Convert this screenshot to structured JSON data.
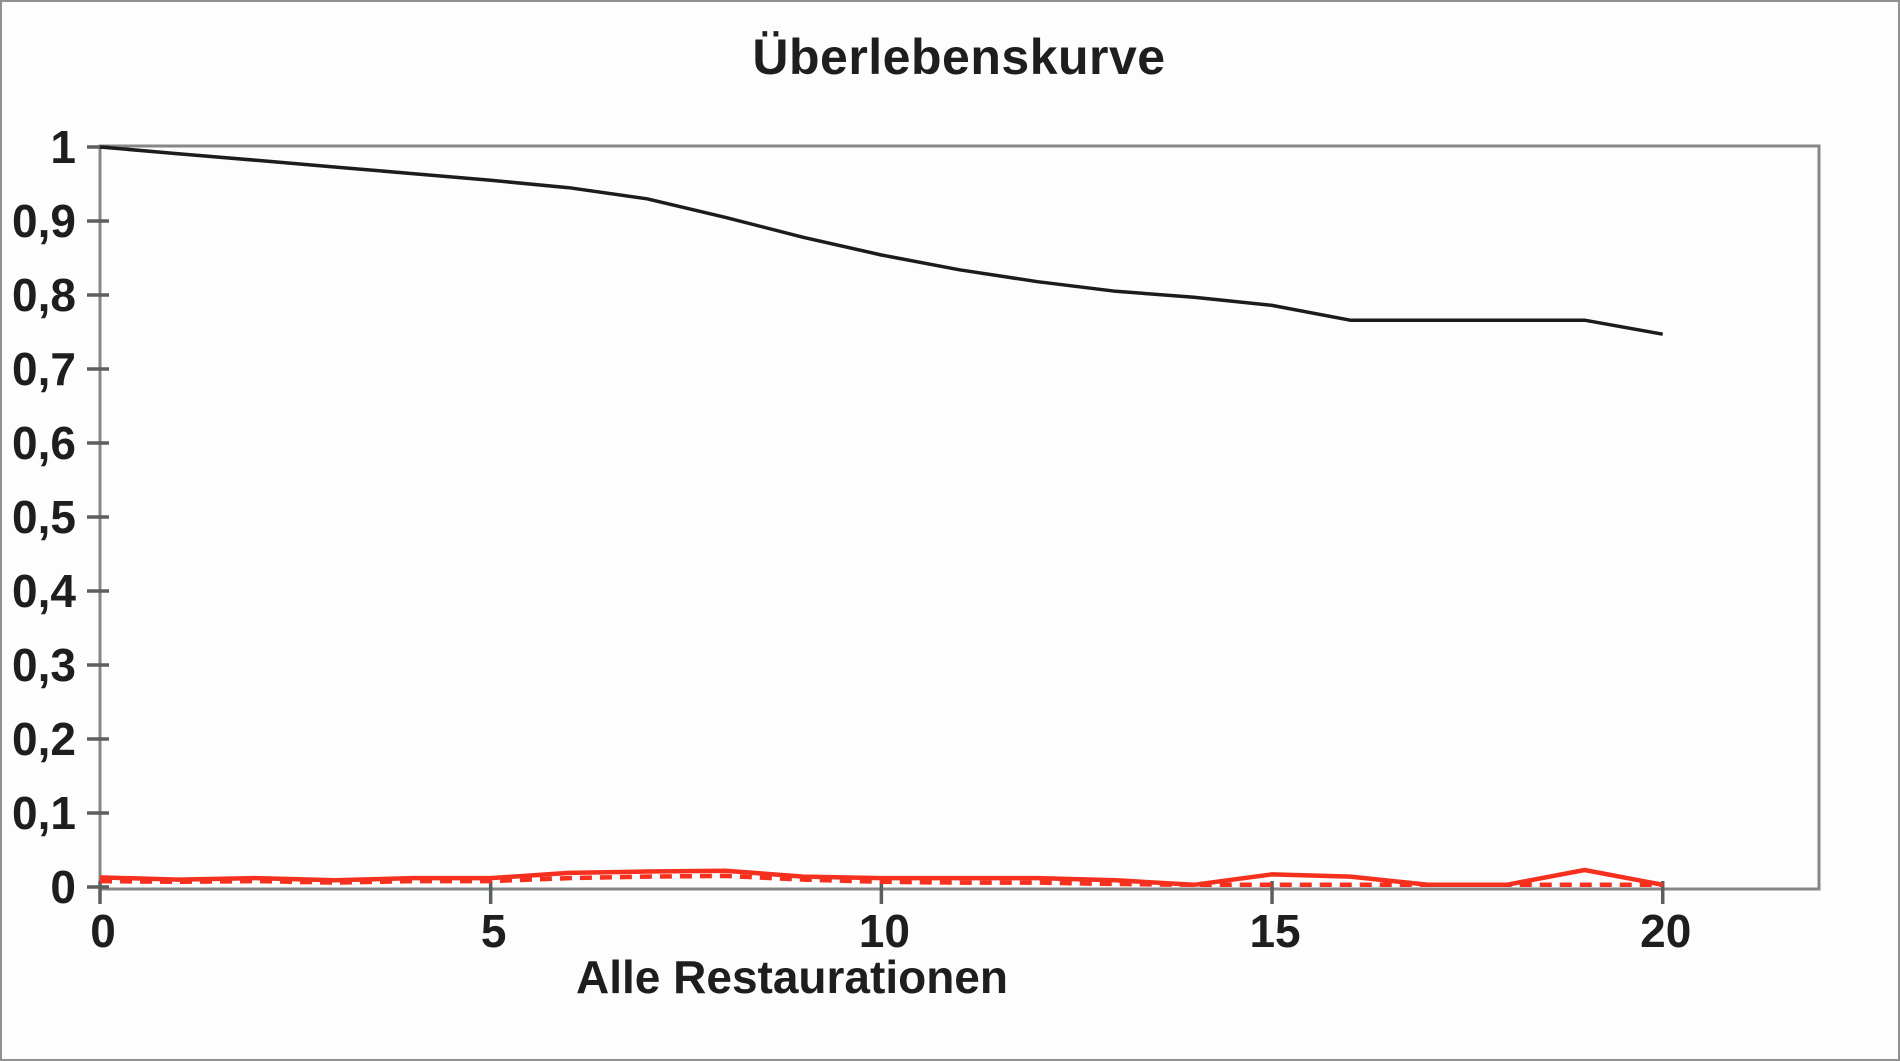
{
  "chart_data": {
    "type": "line",
    "title": "Überlebenskurve",
    "xlabel": "Alle Restaurationen",
    "ylabel": "",
    "x": [
      0,
      1,
      2,
      3,
      4,
      5,
      6,
      7,
      8,
      9,
      10,
      11,
      12,
      13,
      14,
      15,
      16,
      17,
      18,
      19,
      20
    ],
    "series": [
      {
        "name": "black_solid",
        "color": "#1c1c1c",
        "style": "solid",
        "width": 3.5,
        "values": [
          1.0,
          0.991,
          0.982,
          0.973,
          0.964,
          0.955,
          0.945,
          0.93,
          0.905,
          0.878,
          0.854,
          0.834,
          0.818,
          0.805,
          0.797,
          0.786,
          0.766,
          0.766,
          0.766,
          0.766,
          0.747
        ]
      },
      {
        "name": "red_solid",
        "color": "#f5301f",
        "style": "solid",
        "width": 4.5,
        "values": [
          0.013,
          0.01,
          0.012,
          0.009,
          0.012,
          0.012,
          0.019,
          0.021,
          0.022,
          0.014,
          0.012,
          0.012,
          0.012,
          0.009,
          0.003,
          0.017,
          0.014,
          0.003,
          0.003,
          0.023,
          0.003
        ]
      },
      {
        "name": "red_dashed",
        "color": "#f5301f",
        "style": "dashed",
        "width": 4.5,
        "values": [
          0.008,
          0.007,
          0.008,
          0.006,
          0.008,
          0.008,
          0.012,
          0.014,
          0.015,
          0.01,
          0.007,
          0.006,
          0.006,
          0.004,
          0.003,
          0.003,
          0.003,
          0.003,
          0.003,
          0.003,
          0.003
        ]
      }
    ],
    "x_ticks": [
      {
        "value": 0,
        "label": "0"
      },
      {
        "value": 5,
        "label": "5"
      },
      {
        "value": 10,
        "label": "10"
      },
      {
        "value": 15,
        "label": "15"
      },
      {
        "value": 20,
        "label": "20"
      }
    ],
    "y_ticks": [
      {
        "value": 1.0,
        "label": "1"
      },
      {
        "value": 0.9,
        "label": "0,9"
      },
      {
        "value": 0.8,
        "label": "0,8"
      },
      {
        "value": 0.7,
        "label": "0,7"
      },
      {
        "value": 0.6,
        "label": "0,6"
      },
      {
        "value": 0.5,
        "label": "0,5"
      },
      {
        "value": 0.4,
        "label": "0,4"
      },
      {
        "value": 0.3,
        "label": "0,3"
      },
      {
        "value": 0.2,
        "label": "0,2"
      },
      {
        "value": 0.1,
        "label": "0,1"
      },
      {
        "value": 0.0,
        "label": "0"
      }
    ],
    "xlim": [
      0,
      22
    ],
    "ylim": [
      0,
      1
    ],
    "grid": false,
    "legend": "none",
    "colors": {
      "frame": "#848889",
      "tick": "#5c5f60",
      "text": "#1e1e1e"
    }
  }
}
